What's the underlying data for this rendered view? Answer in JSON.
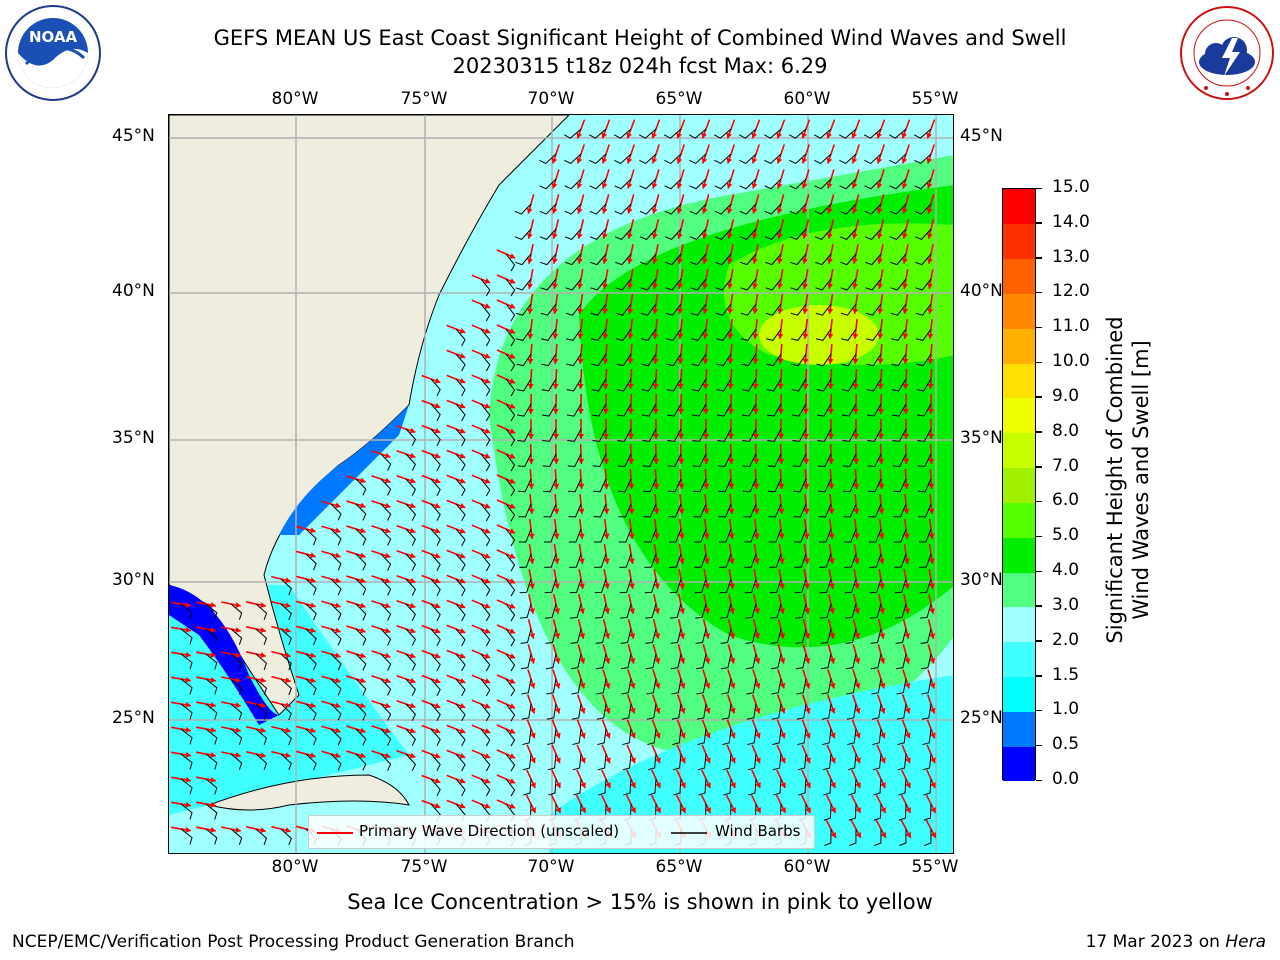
{
  "header": {
    "title_line1": "GEFS MEAN US East Coast Significant Height of Combined Wind Waves and Swell",
    "title_line2": "20230315 t18z 024h fcst   Max: 6.29"
  },
  "logos": {
    "left": {
      "name": "NOAA",
      "ring_text": "NATIONAL OCEANIC AND ATMOSPHERIC ADMINISTRATION · U.S. DEPARTMENT OF COMMERCE"
    },
    "right": {
      "name": "NATIONAL WEATHER SERVICE"
    }
  },
  "map": {
    "lon_ticks": [
      "80°W",
      "75°W",
      "70°W",
      "65°W",
      "60°W",
      "55°W"
    ],
    "lat_ticks": [
      "45°N",
      "40°N",
      "35°N",
      "30°N",
      "25°N"
    ],
    "colors": {
      "land": "#efedde",
      "grid": "#b0b0b0",
      "wave_arrow": "#ff0000",
      "barb": "#000000"
    }
  },
  "legend": {
    "primary_wave": "Primary Wave Direction (unscaled)",
    "wind_barbs": "Wind Barbs"
  },
  "colorbar": {
    "title_line1": "Significant Height of Combined",
    "title_line2": "Wind Waves and Swell [m]",
    "ticks": [
      "15.0",
      "14.0",
      "13.0",
      "12.0",
      "11.0",
      "10.0",
      "9.0",
      "8.0",
      "7.0",
      "6.0",
      "5.0",
      "4.0",
      "3.0",
      "2.0",
      "1.5",
      "1.0",
      "0.5",
      "0.0"
    ],
    "colors": [
      "#0000ff",
      "#0078ff",
      "#00ffff",
      "#40ffff",
      "#a0ffff",
      "#50ff80",
      "#00ee00",
      "#55ff00",
      "#a0f000",
      "#c8ff00",
      "#f0ff00",
      "#ffe000",
      "#ffb000",
      "#ff8800",
      "#ff6000",
      "#ff3000",
      "#ff0000"
    ]
  },
  "footer": {
    "ice_note": "Sea Ice Concentration > 15% is shown in pink to yellow",
    "branch": "NCEP/EMC/Verification Post Processing Product Generation Branch",
    "date": "17 Mar 2023 on",
    "machine": "Hera"
  }
}
